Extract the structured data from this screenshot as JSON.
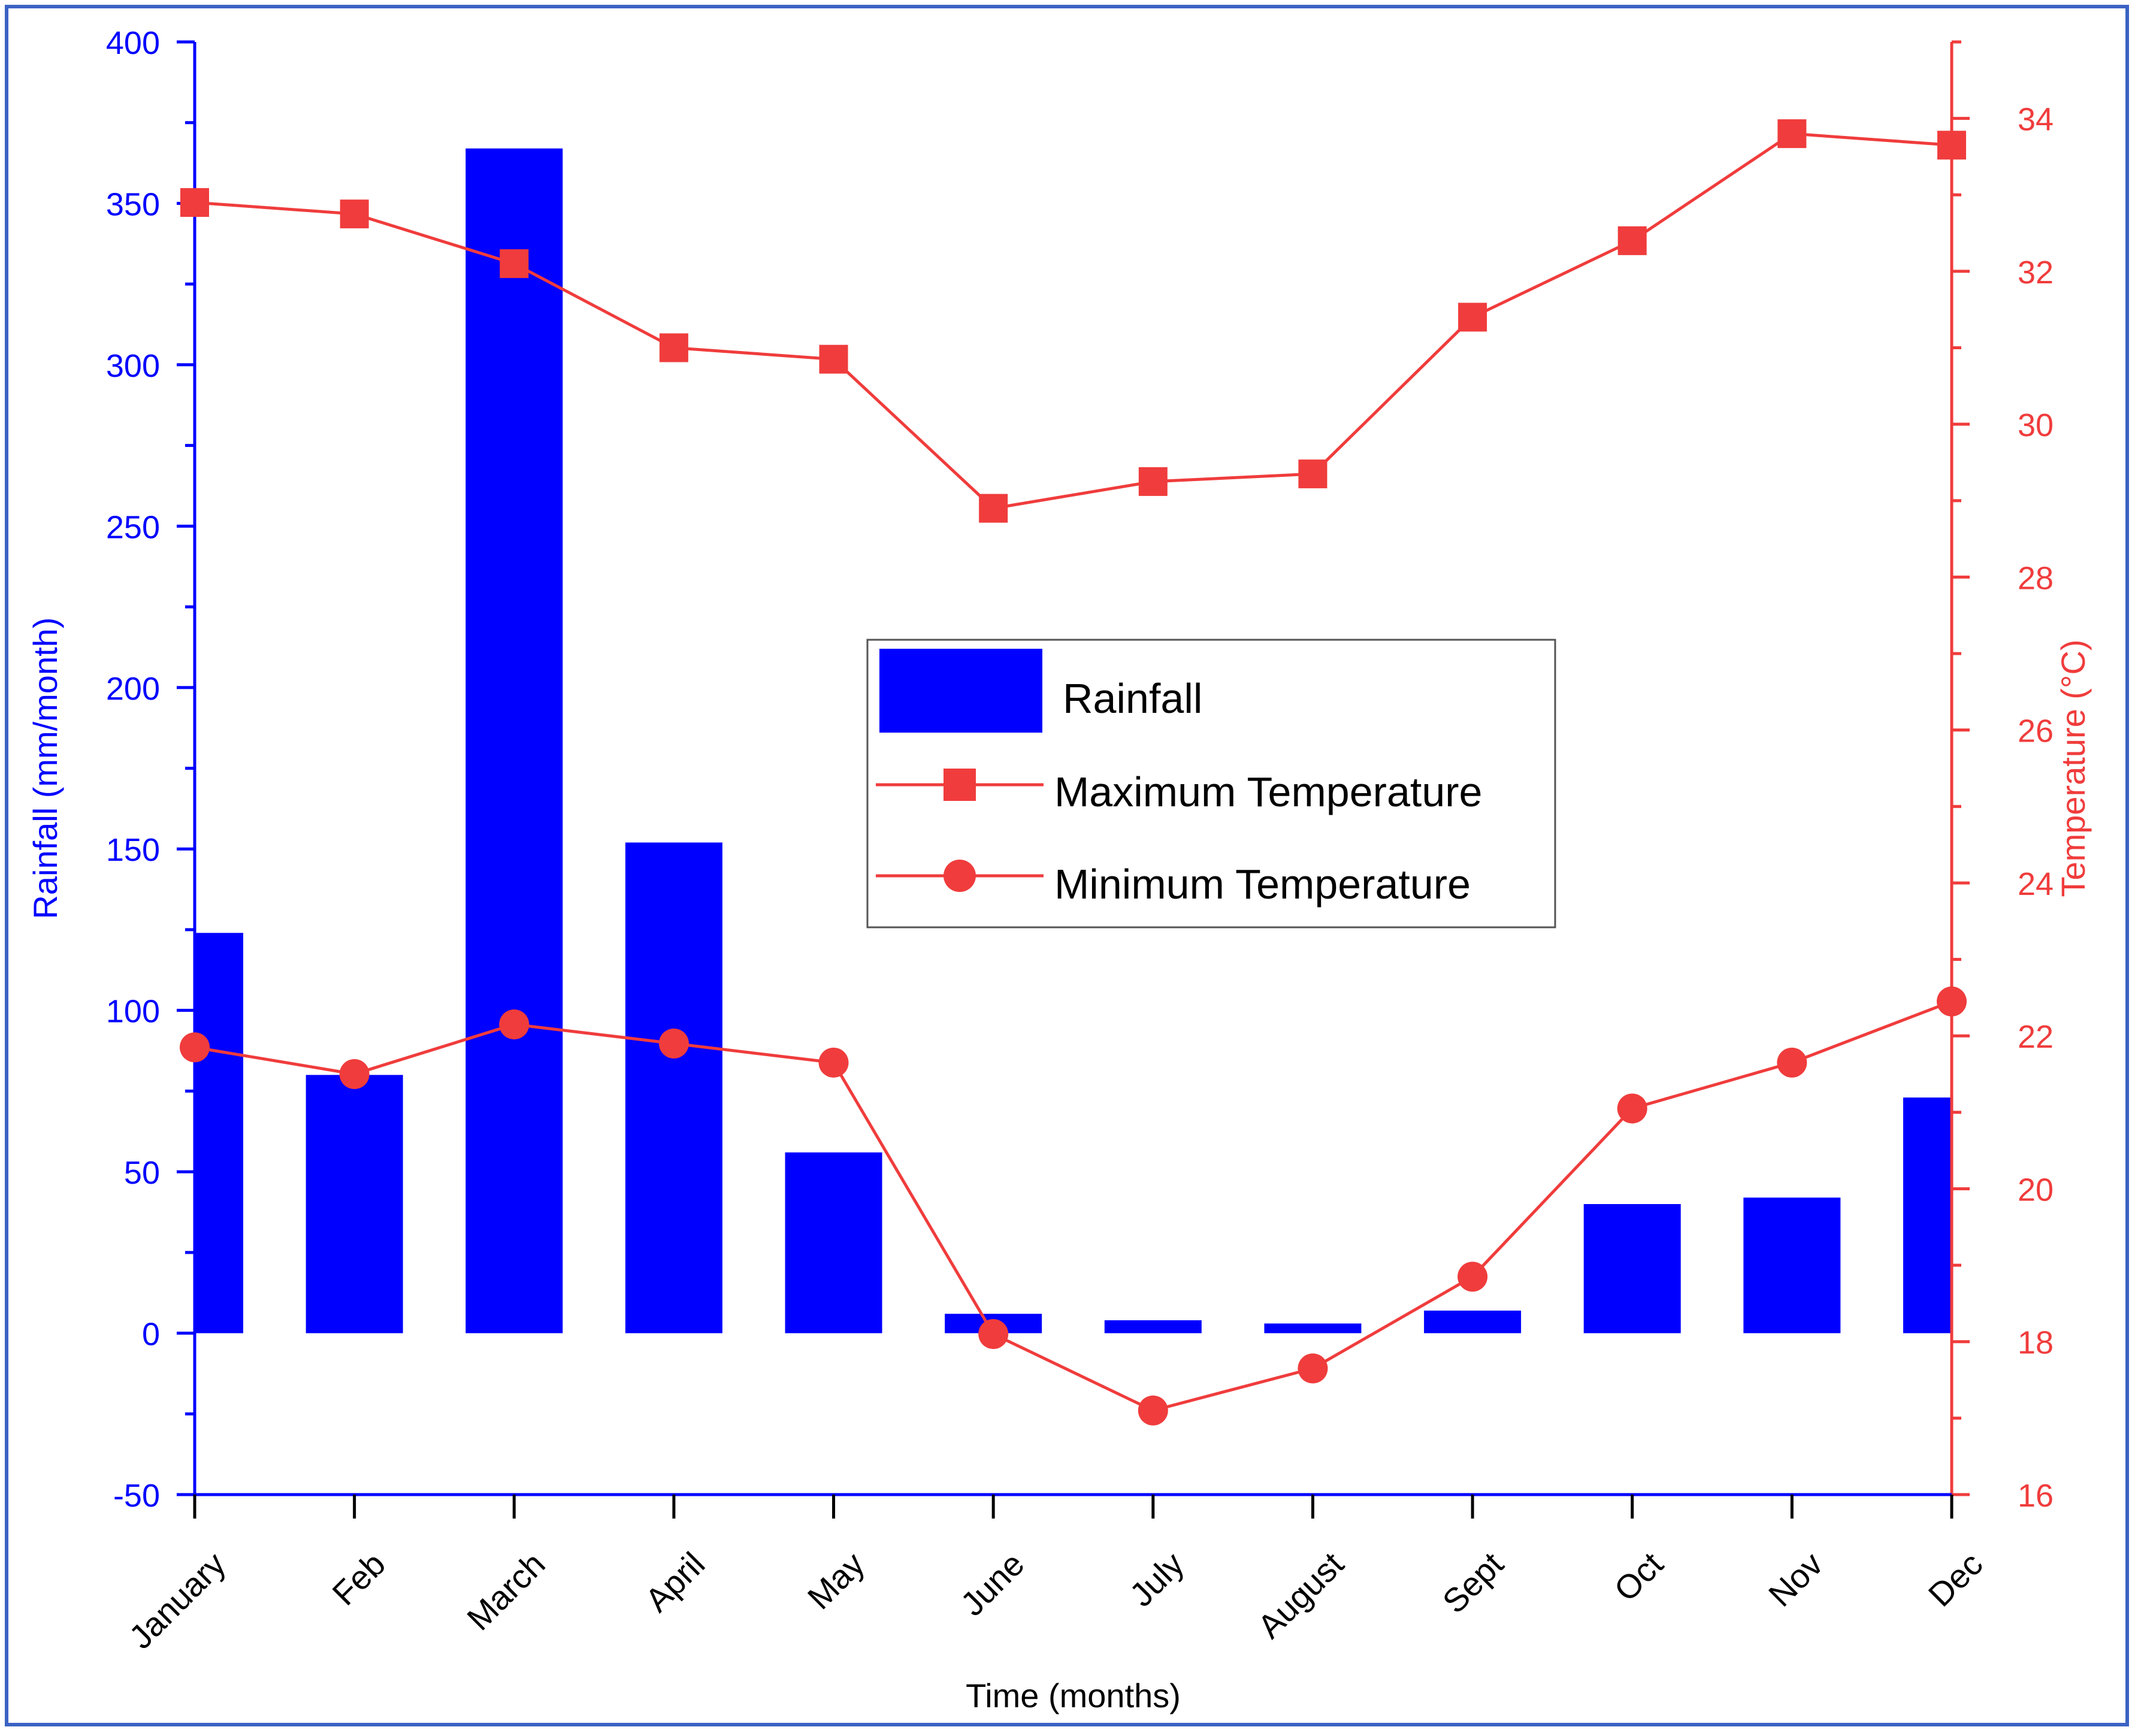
{
  "chart_data": {
    "type": "bar+line",
    "title": "",
    "categories": [
      "January",
      "Feb",
      "March",
      "April",
      "May",
      "June",
      "July",
      "August",
      "Sept",
      "Oct",
      "Nov",
      "Dec"
    ],
    "xlabel": "Time (months)",
    "ylabel_left": "Rainfall (mm/month)",
    "ylabel_right": "Temperature (°C)",
    "ylim_left": [
      -50,
      400
    ],
    "yticks_left": [
      -50,
      0,
      50,
      100,
      150,
      200,
      250,
      300,
      350,
      400
    ],
    "ylim_right": [
      16,
      35
    ],
    "yticks_right": [
      16,
      18,
      20,
      22,
      24,
      26,
      28,
      30,
      32,
      34
    ],
    "grid": false,
    "legend_position": "center",
    "series": [
      {
        "name": "Rainfall",
        "type": "bar",
        "axis": "left",
        "color": "#0000ff",
        "values": [
          124,
          80,
          367,
          152,
          56,
          6,
          4,
          3,
          7,
          40,
          42,
          73
        ]
      },
      {
        "name": "Maximum Temperature",
        "type": "line",
        "marker": "square",
        "axis": "right",
        "color": "#f03c3c",
        "values": [
          32.9,
          32.75,
          32.1,
          31.0,
          30.85,
          28.9,
          29.25,
          29.35,
          31.4,
          32.4,
          33.8,
          33.65
        ]
      },
      {
        "name": "Minimum Temperature",
        "type": "line",
        "marker": "circle",
        "axis": "right",
        "color": "#f03c3c",
        "values": [
          21.85,
          21.5,
          22.15,
          21.9,
          21.65,
          18.1,
          17.1,
          17.65,
          18.85,
          21.05,
          21.65,
          22.45
        ]
      }
    ]
  }
}
